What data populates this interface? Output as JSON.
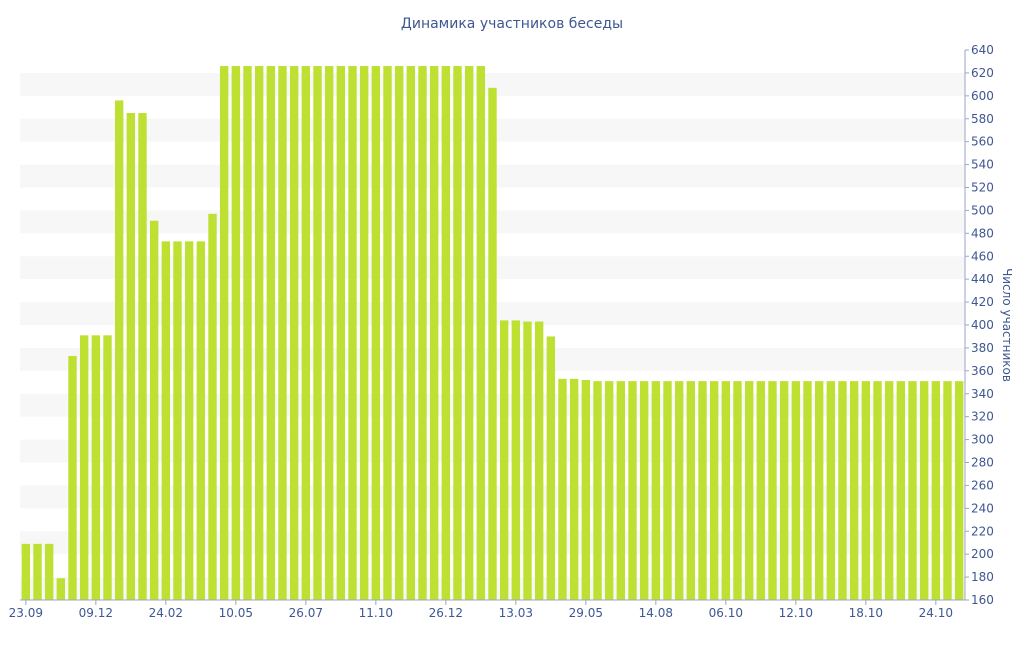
{
  "chart_data": {
    "type": "bar",
    "title": "Динамика участников беседы",
    "xlabel": "",
    "ylabel": "Число участников",
    "ylim": [
      160,
      640
    ],
    "y_ticks": [
      160,
      180,
      200,
      220,
      240,
      260,
      280,
      300,
      320,
      340,
      360,
      380,
      400,
      420,
      440,
      460,
      480,
      500,
      520,
      540,
      560,
      580,
      600,
      620,
      640
    ],
    "x_tick_labels": [
      {
        "index": 0,
        "label": "23.09"
      },
      {
        "index": 6,
        "label": "09.12"
      },
      {
        "index": 12,
        "label": "24.02"
      },
      {
        "index": 18,
        "label": "10.05"
      },
      {
        "index": 24,
        "label": "26.07"
      },
      {
        "index": 30,
        "label": "11.10"
      },
      {
        "index": 36,
        "label": "26.12"
      },
      {
        "index": 42,
        "label": "13.03"
      },
      {
        "index": 48,
        "label": "29.05"
      },
      {
        "index": 54,
        "label": "14.08"
      },
      {
        "index": 60,
        "label": "06.10"
      },
      {
        "index": 66,
        "label": "12.10"
      },
      {
        "index": 72,
        "label": "18.10"
      },
      {
        "index": 78,
        "label": "24.10"
      }
    ],
    "values": [
      209,
      209,
      209,
      179,
      373,
      391,
      391,
      391,
      596,
      585,
      585,
      491,
      473,
      473,
      473,
      473,
      497,
      626,
      626,
      626,
      626,
      626,
      626,
      626,
      626,
      626,
      626,
      626,
      626,
      626,
      626,
      626,
      626,
      626,
      626,
      626,
      626,
      626,
      626,
      626,
      607,
      404,
      404,
      403,
      403,
      390,
      353,
      353,
      352,
      351,
      351,
      351,
      351,
      351,
      351,
      351,
      351,
      351,
      351,
      351,
      351,
      351,
      351,
      351,
      351,
      351,
      351,
      351,
      351,
      351,
      351,
      351,
      351,
      351,
      351,
      351,
      351,
      351,
      351,
      351,
      351
    ],
    "colors": {
      "bar": "#bee033",
      "stripe": "#f7f7f7",
      "text": "#3e5791"
    },
    "grid": "alternating horizontal bands",
    "legend": "none"
  }
}
